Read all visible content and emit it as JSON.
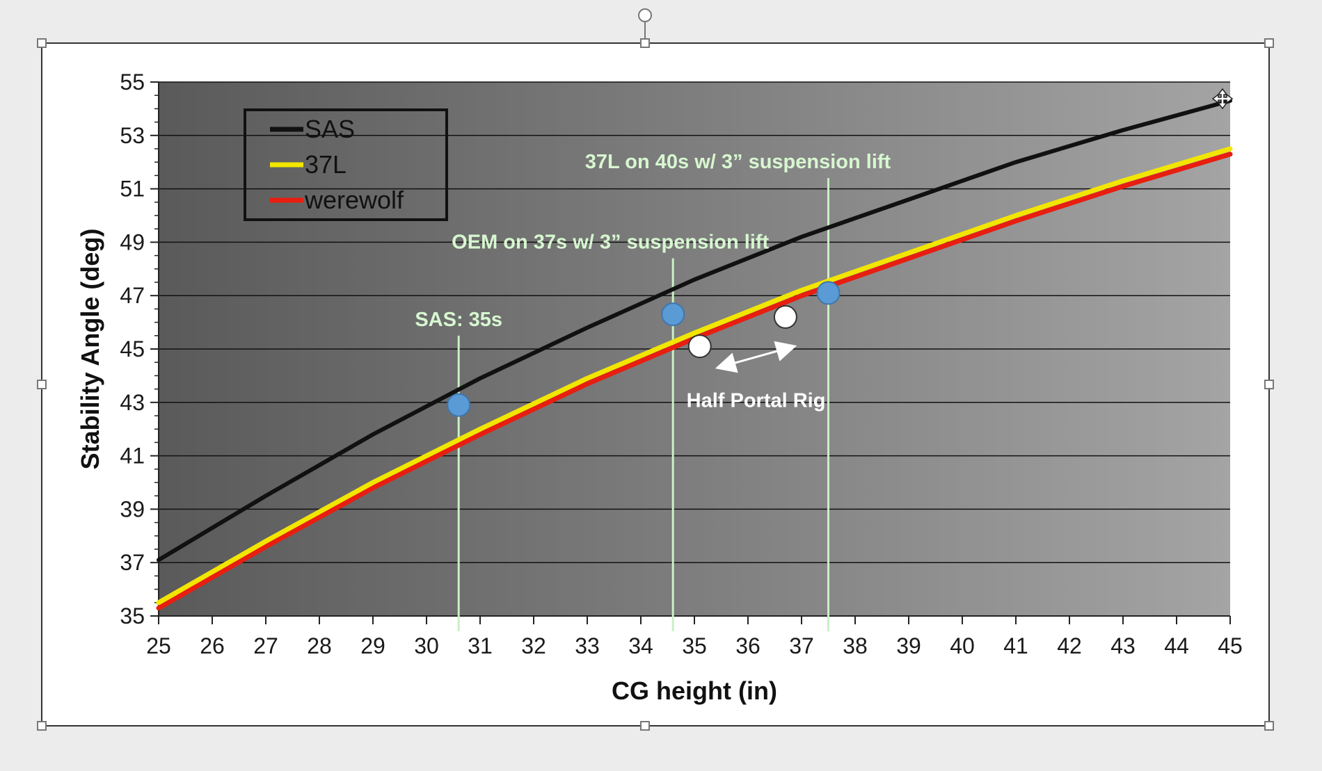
{
  "chart_data": {
    "type": "line",
    "title": "",
    "xlabel": "CG height (in)",
    "ylabel": "Stability Angle (deg)",
    "xlim": [
      25,
      45
    ],
    "ylim": [
      35,
      55
    ],
    "x_ticks": [
      25,
      26,
      27,
      28,
      29,
      30,
      31,
      32,
      33,
      34,
      35,
      36,
      37,
      38,
      39,
      40,
      41,
      42,
      43,
      44,
      45
    ],
    "y_ticks": [
      35,
      37,
      39,
      41,
      43,
      45,
      47,
      49,
      51,
      53,
      55
    ],
    "grid": "horizontal",
    "legend": "top-left",
    "series": [
      {
        "name": "SAS",
        "color": "#111111",
        "x": [
          25,
          27,
          29,
          31,
          33,
          35,
          37,
          39,
          41,
          43,
          45
        ],
        "y": [
          37.1,
          39.5,
          41.8,
          43.9,
          45.8,
          47.6,
          49.2,
          50.6,
          52.0,
          53.2,
          54.3
        ]
      },
      {
        "name": "37L",
        "color": "#f2e600",
        "x": [
          25,
          27,
          29,
          31,
          33,
          35,
          37,
          39,
          41,
          43,
          45
        ],
        "y": [
          35.5,
          37.8,
          40.0,
          42.0,
          43.9,
          45.6,
          47.2,
          48.6,
          50.0,
          51.3,
          52.5
        ]
      },
      {
        "name": "werewolf",
        "color": "#e81e10",
        "x": [
          25,
          27,
          29,
          31,
          33,
          35,
          37,
          39,
          41,
          43,
          45
        ],
        "y": [
          35.4,
          37.7,
          39.9,
          41.9,
          43.8,
          45.5,
          47.1,
          48.5,
          49.9,
          51.2,
          52.4
        ]
      }
    ],
    "vertical_lines": [
      {
        "label": "SAS: 35s",
        "x": 30.6,
        "y_top": 45.5
      },
      {
        "label": "OEM on 37s w/ 3” suspension lift",
        "x": 34.6,
        "y_top": 48.4
      },
      {
        "label": "37L on 40s w/ 3” suspension lift",
        "x": 37.5,
        "y_top": 51.4
      }
    ],
    "marked_points": [
      {
        "x": 30.6,
        "y": 42.9,
        "color": "#5b9bd5"
      },
      {
        "x": 34.6,
        "y": 46.3,
        "color": "#5b9bd5"
      },
      {
        "x": 37.5,
        "y": 47.1,
        "color": "#5b9bd5"
      },
      {
        "x": 35.1,
        "y": 45.1,
        "color": "#ffffff"
      },
      {
        "x": 36.7,
        "y": 46.2,
        "color": "#ffffff"
      }
    ],
    "arrow_annotation": {
      "label": "Half Portal Rig",
      "x_from": 35.5,
      "x_to": 36.8,
      "y": 44.7
    }
  }
}
